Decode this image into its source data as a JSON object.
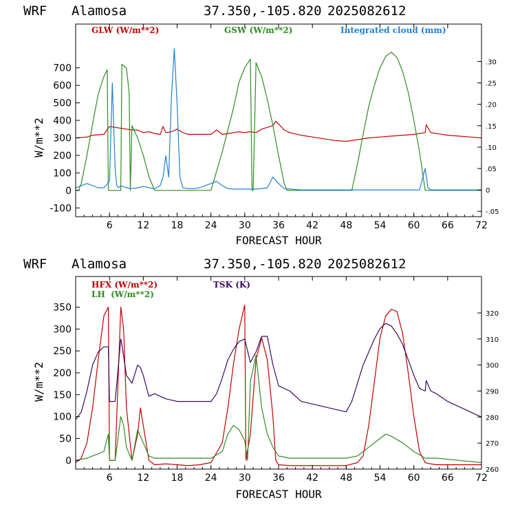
{
  "charts": [
    {
      "header": {
        "model": "WRF",
        "location": "Alamosa",
        "coords": "37.350,-105.820",
        "date": "2025082612"
      },
      "xlabel": "FORECAST HOUR",
      "ylabel": "W/m**2",
      "xticks": [
        "6",
        "12",
        "18",
        "24",
        "30",
        "36",
        "42",
        "48",
        "54",
        "60",
        "66",
        "72"
      ],
      "yticks_left": [
        "-100",
        "0",
        "100",
        "200",
        "300",
        "400",
        "500",
        "600",
        "700"
      ],
      "yticks_right": [
        "-.05",
        "0",
        ".05",
        ".10",
        ".15",
        ".20",
        ".25",
        ".30"
      ],
      "legend": [
        {
          "label": "GLW (W/m**2)",
          "color": "#c00000"
        },
        {
          "label": "GSW (W/m**2)",
          "color": "#2e8b22"
        },
        {
          "label": "Integrated cloud (mm)",
          "color": "#1e7fd0"
        }
      ]
    },
    {
      "header": {
        "model": "WRF",
        "location": "Alamosa",
        "coords": "37.350,-105.820",
        "date": "2025082612"
      },
      "xlabel": "FORECAST HOUR",
      "ylabel": "W/m**2",
      "xticks": [
        "6",
        "12",
        "18",
        "24",
        "30",
        "36",
        "42",
        "48",
        "54",
        "60",
        "66",
        "72"
      ],
      "yticks_left": [
        "0",
        "50",
        "100",
        "150",
        "200",
        "250",
        "300",
        "350"
      ],
      "yticks_right": [
        "260",
        "270",
        "280",
        "290",
        "300",
        "310",
        "320"
      ],
      "legend": [
        {
          "label": "HFX (W/m**2)",
          "color": "#c00000"
        },
        {
          "label": "LH  (W/m**2)",
          "color": "#2e8b22"
        },
        {
          "label": "TSK (K)",
          "color": "#3a0a5e"
        }
      ]
    }
  ],
  "chart_data": [
    {
      "type": "line",
      "title": "WRF Alamosa 37.350,-105.820 2025082612",
      "xlabel": "FORECAST HOUR",
      "ylabel": "W/m**2",
      "xlim": [
        0,
        72
      ],
      "ylim": [
        -150,
        950
      ],
      "ylim_right": [
        -0.0625,
        0.3875
      ],
      "grid": false,
      "series": [
        {
          "name": "GLW (W/m**2)",
          "axis": "left",
          "color": "#c00000",
          "x": [
            0,
            2,
            3,
            4,
            5,
            6,
            7,
            8,
            9,
            10,
            11,
            12,
            13,
            14,
            15,
            15.5,
            16,
            17,
            18,
            19,
            20,
            21,
            22,
            23,
            24,
            25,
            26,
            27,
            28,
            29,
            30,
            31,
            32,
            33,
            34,
            35,
            35.5,
            36,
            37,
            38,
            40,
            42,
            44,
            46,
            48,
            50,
            52,
            54,
            56,
            58,
            60,
            62,
            62.2,
            63,
            64,
            66,
            68,
            70,
            72
          ],
          "y": [
            300,
            305,
            315,
            318,
            320,
            365,
            360,
            355,
            350,
            345,
            345,
            330,
            335,
            325,
            320,
            365,
            330,
            335,
            350,
            330,
            320,
            320,
            320,
            320,
            320,
            345,
            320,
            325,
            330,
            335,
            330,
            335,
            330,
            350,
            360,
            370,
            395,
            380,
            345,
            330,
            315,
            305,
            295,
            285,
            280,
            290,
            300,
            305,
            310,
            315,
            320,
            330,
            375,
            330,
            325,
            315,
            310,
            305,
            300
          ]
        },
        {
          "name": "GSW (W/m**2)",
          "axis": "left",
          "color": "#2e8b22",
          "x": [
            0,
            0.5,
            1,
            2,
            3,
            4,
            5,
            5.6,
            5.8,
            6,
            7,
            8,
            8.2,
            9,
            9.5,
            9.7,
            10,
            11,
            12,
            13,
            14,
            24,
            26,
            28,
            29,
            30,
            31,
            31.3,
            31.5,
            32,
            33,
            34,
            35,
            36,
            37,
            37.5,
            48,
            49,
            50,
            51,
            52,
            53,
            54,
            55,
            56,
            57,
            58,
            59,
            60,
            61,
            62,
            72
          ],
          "y": [
            0,
            0,
            40,
            200,
            380,
            550,
            650,
            690,
            0,
            0,
            0,
            0,
            720,
            700,
            560,
            0,
            370,
            300,
            200,
            80,
            0,
            0,
            220,
            470,
            620,
            700,
            750,
            0,
            0,
            730,
            650,
            520,
            370,
            200,
            40,
            0,
            0,
            0,
            150,
            320,
            480,
            600,
            700,
            765,
            790,
            760,
            680,
            560,
            400,
            220,
            0,
            0
          ]
        },
        {
          "name": "Integrated cloud (mm)",
          "axis": "right",
          "color": "#1e7fd0",
          "x": [
            0,
            1,
            2,
            3,
            4,
            5,
            6,
            6.5,
            7,
            7.3,
            7.6,
            8,
            9,
            10,
            11,
            12,
            13,
            14,
            15,
            15.5,
            16,
            16.5,
            17,
            17.5,
            18,
            18.5,
            19,
            20,
            21,
            22,
            23,
            24,
            25,
            26,
            27,
            28,
            29,
            30,
            31,
            32,
            33,
            34,
            35,
            36,
            37,
            38,
            40,
            50,
            60,
            61,
            62,
            62.5,
            63,
            64,
            72
          ],
          "y": [
            0.005,
            0.01,
            0.015,
            0.01,
            0.005,
            0.005,
            0.02,
            0.25,
            0.05,
            0.01,
            0.005,
            0.01,
            0.005,
            0.003,
            0.005,
            0.008,
            0.005,
            0.003,
            0.01,
            0.03,
            0.08,
            0.03,
            0.22,
            0.33,
            0.2,
            0.03,
            0.005,
            0.003,
            0.003,
            0.005,
            0.01,
            0.015,
            0.02,
            0.01,
            0.003,
            0.002,
            0.002,
            0.002,
            0.002,
            0.002,
            0.003,
            0.005,
            0.03,
            0.015,
            0.003,
            0.002,
            0.0,
            0.0,
            0.0,
            0.0,
            0.05,
            0.005,
            0.0,
            0.0,
            0.0
          ]
        }
      ]
    },
    {
      "type": "line",
      "title": "WRF Alamosa 37.350,-105.820 2025082612",
      "xlabel": "FORECAST HOUR",
      "ylabel": "W/m**2",
      "xlim": [
        0,
        72
      ],
      "ylim": [
        -20,
        420
      ],
      "ylim_right": [
        260,
        334
      ],
      "grid": false,
      "series": [
        {
          "name": "HFX (W/m**2)",
          "axis": "left",
          "color": "#c00000",
          "x": [
            0,
            1,
            2,
            3,
            4,
            5,
            5.8,
            6,
            7,
            8,
            8.5,
            9,
            10,
            11,
            11.5,
            12,
            13,
            14,
            16,
            18,
            20,
            22,
            24,
            26,
            27,
            28,
            29,
            30,
            30.2,
            31,
            32,
            33,
            34,
            35,
            35.5,
            36,
            38,
            40,
            42,
            44,
            46,
            48,
            50,
            51,
            52,
            53,
            54,
            55,
            56,
            57,
            58,
            59,
            60,
            61,
            62,
            63,
            64,
            66,
            68,
            70,
            72
          ],
          "y": [
            -5,
            5,
            40,
            120,
            230,
            330,
            350,
            0,
            0,
            350,
            300,
            120,
            0,
            60,
            120,
            80,
            0,
            -10,
            -8,
            -10,
            -12,
            -10,
            -5,
            40,
            120,
            220,
            300,
            355,
            0,
            60,
            230,
            280,
            230,
            100,
            0,
            -10,
            -12,
            -12,
            -12,
            -12,
            -12,
            -12,
            -5,
            10,
            80,
            180,
            280,
            330,
            345,
            340,
            290,
            200,
            100,
            20,
            -5,
            -8,
            -10,
            -10,
            -10,
            -10,
            -10
          ]
        },
        {
          "name": "LH  (W/m**2)",
          "axis": "left",
          "color": "#2e8b22",
          "x": [
            0,
            2,
            4,
            5,
            5.8,
            6,
            7,
            8,
            8.5,
            9,
            10,
            11,
            12,
            13,
            14,
            16,
            18,
            20,
            22,
            24,
            26,
            27,
            28,
            29,
            30,
            30.5,
            31,
            32,
            33,
            34,
            35,
            36,
            38,
            42,
            48,
            50,
            52,
            54,
            55,
            56,
            58,
            60,
            62,
            64,
            68,
            72
          ],
          "y": [
            0,
            5,
            15,
            20,
            60,
            0,
            0,
            100,
            80,
            30,
            0,
            70,
            40,
            10,
            5,
            5,
            5,
            5,
            5,
            5,
            20,
            60,
            80,
            70,
            45,
            0,
            180,
            240,
            120,
            60,
            30,
            10,
            5,
            5,
            5,
            10,
            30,
            50,
            60,
            55,
            40,
            20,
            5,
            5,
            0,
            -5
          ]
        },
        {
          "name": "TSK (K)",
          "axis": "right",
          "color": "#3a0a5e",
          "x": [
            0,
            1,
            2,
            3,
            4,
            5,
            5.8,
            6,
            7,
            8,
            8.2,
            9,
            10,
            11,
            11.5,
            12,
            13,
            14,
            15,
            16,
            18,
            20,
            22,
            24,
            25,
            26,
            27,
            28,
            29,
            30,
            31,
            32,
            33,
            34,
            35,
            36,
            38,
            40,
            44,
            48,
            49,
            50,
            51,
            52,
            53,
            54,
            55,
            56,
            57,
            58,
            59,
            60,
            61,
            62,
            62.2,
            63,
            64,
            66,
            68,
            70,
            72
          ],
          "y": [
            279,
            282,
            290,
            300,
            305,
            307,
            307,
            286,
            286,
            310,
            308,
            296,
            293,
            300,
            299,
            296,
            288,
            289,
            288,
            287,
            286,
            286,
            286,
            286,
            289,
            295,
            302,
            306,
            309,
            310,
            301,
            305,
            311,
            311,
            300,
            292,
            290,
            286,
            284,
            282,
            286,
            293,
            300,
            305,
            310,
            314,
            316,
            315,
            312,
            308,
            302,
            296,
            291,
            290,
            294,
            290,
            289,
            286,
            284,
            282,
            280
          ]
        }
      ]
    }
  ]
}
